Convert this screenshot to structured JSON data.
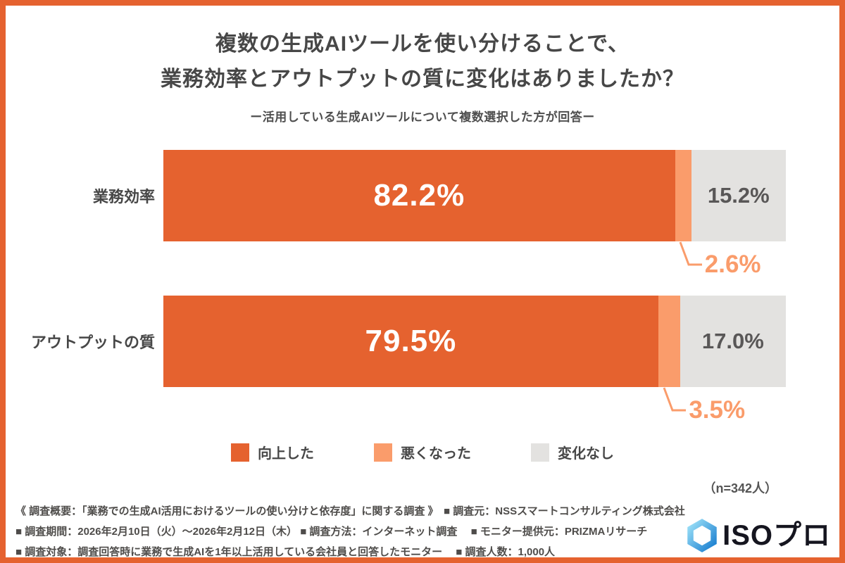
{
  "page": {
    "title_line1": "複数の生成AIツールを使い分けることで、",
    "title_line2": "業務効率とアウトプットの質に変化はありましたか？",
    "subtitle": "ー活用している生成AIツールについて複数選択した方が回答ー",
    "sample_note": "（n=342人）"
  },
  "chart_data": {
    "type": "bar",
    "variant": "horizontal-stacked",
    "categories": [
      "業務効率",
      "アウトプットの質"
    ],
    "series": [
      {
        "name": "向上した",
        "color": "#E5622F",
        "values": [
          82.2,
          79.5
        ]
      },
      {
        "name": "悪くなった",
        "color": "#FA9C6B",
        "values": [
          2.6,
          3.5
        ]
      },
      {
        "name": "変化なし",
        "color": "#E3E2E0",
        "values": [
          15.2,
          17.0
        ]
      }
    ],
    "labels": [
      [
        "82.2%",
        "2.6%",
        "15.2%"
      ],
      [
        "79.5%",
        "3.5%",
        "17.0%"
      ]
    ],
    "xlim": [
      0,
      100
    ],
    "unit": "%",
    "legend_position": "bottom",
    "grid": false
  },
  "footer": {
    "line1": "《 調査概要：「業務での生成AI活用におけるツールの使い分けと依存度」に関する調査 》　■ 調査元：NSSスマートコンサルティング株式会社",
    "line2": "■ 調査期間：2026年2月10日（火）～2026年2月12日（木） ■ 調査方法：インターネット調査　 ■ モニター提供元：PRIZMAリサーチ",
    "line3": "■ 調査対象：調査回答時に業務で生成AIを1年以上活用している会社員と回答したモニター　 ■ 調査人数：1,000人"
  },
  "logo": {
    "text": "ISOプロ"
  },
  "colors": {
    "frame": "#E5622F",
    "accent": "#E5622F",
    "accent_light": "#FA9C6B",
    "neutral": "#E3E2E0",
    "text": "#474747",
    "logo_blue_light": "#9ADFF7",
    "logo_blue_dark": "#1B7FD0"
  }
}
